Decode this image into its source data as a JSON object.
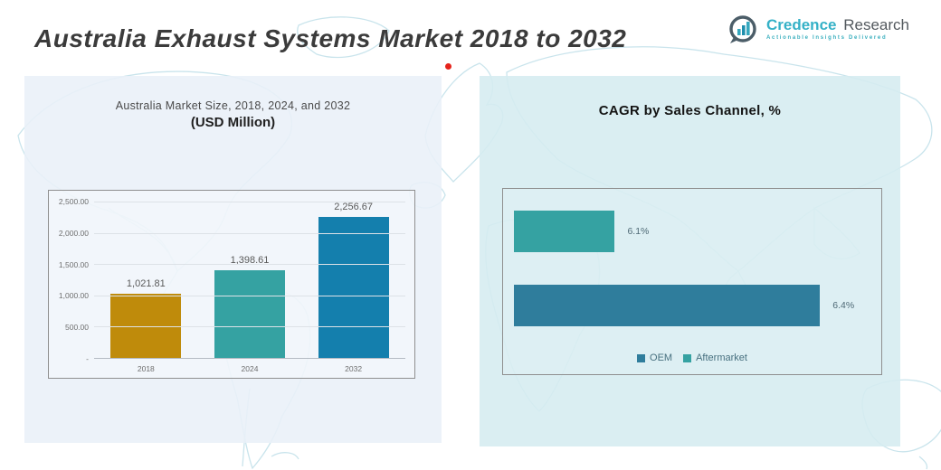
{
  "header": {
    "title": "Australia Exhaust Systems Market 2018 to 2032",
    "logo": {
      "brand_primary": "Credence",
      "brand_secondary": "Research",
      "tagline": "Actionable Insights Delivered"
    }
  },
  "colors": {
    "gold": "#BF8B0B",
    "teal": "#35A2A2",
    "blue": "#147FAD",
    "steel_blue": "#2F7D9C",
    "left_panel_bg": "#E9F0F8",
    "right_panel_bg": "#D5ECF0",
    "map_line": "#C9E4EC",
    "red_dot": "#E5231B",
    "brand_cyan": "#35B1C7"
  },
  "chart_data": [
    {
      "id": "market-size",
      "type": "bar",
      "title": "Australia Market Size, 2018, 2024, and 2032",
      "subtitle": "(USD Million)",
      "xlabel": "",
      "ylabel": "USD Million",
      "categories": [
        "2018",
        "2024",
        "2032"
      ],
      "values": [
        1021.81,
        1398.61,
        2256.67
      ],
      "value_labels": [
        "1,021.81",
        "1,398.61",
        "2,256.67"
      ],
      "bar_colors": [
        "#BF8B0B",
        "#35A2A2",
        "#147FAD"
      ],
      "yticks": [
        "2,500.00",
        "2,000.00",
        "1,500.00",
        "1,000.00",
        "500.00",
        "-"
      ],
      "ylim": [
        0,
        2500
      ],
      "grid": true,
      "legend_position": "none"
    },
    {
      "id": "cagr-by-sales-channel",
      "type": "bar-horizontal",
      "title": "CAGR by Sales Channel, %",
      "categories": [
        "Aftermarket",
        "OEM"
      ],
      "values": [
        6.1,
        6.4
      ],
      "value_labels": [
        "6.1%",
        "6.4%"
      ],
      "bar_colors": [
        "#35A2A2",
        "#2F7D9C"
      ],
      "display_length_pct": [
        28,
        85
      ],
      "grid": false,
      "legend_position": "bottom",
      "legend": [
        {
          "label": "OEM",
          "color": "#2F7D9C"
        },
        {
          "label": "Aftermarket",
          "color": "#35A2A2"
        }
      ]
    }
  ]
}
